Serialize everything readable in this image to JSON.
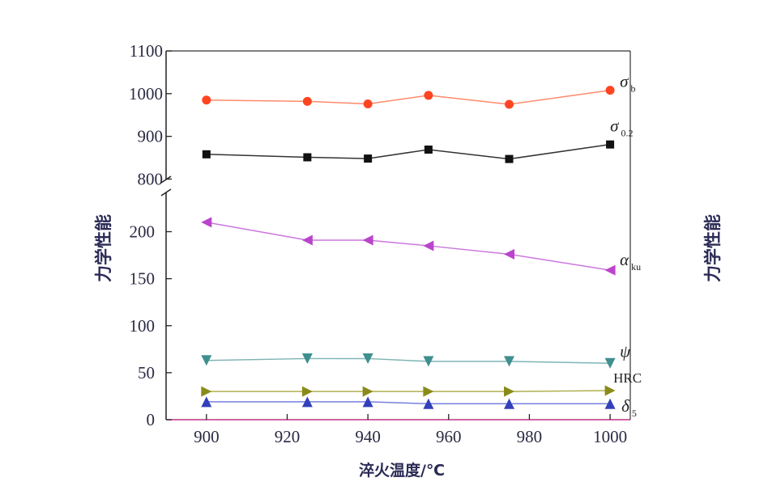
{
  "chart_data": {
    "type": "line",
    "xlabel": "淬火温度/℃",
    "ylabel": "力学性能",
    "ylabel_right": "力学性能",
    "x_ticks": [
      "900",
      "920",
      "940",
      "960",
      "980",
      "1000"
    ],
    "xlim": [
      890,
      1005
    ],
    "y_ticks_upper": [
      "800",
      "900",
      "1000",
      "1100"
    ],
    "y_ticks_lower": [
      "0",
      "50",
      "100",
      "150",
      "200"
    ],
    "ylim_upper": [
      780,
      1100
    ],
    "ylim_lower": [
      0,
      240
    ],
    "axis_break": "between 240 and 780",
    "x": [
      900,
      925,
      940,
      955,
      975,
      1000
    ],
    "series": [
      {
        "name": "σb",
        "label_main": "σ",
        "label_sub": "b",
        "values": [
          985,
          982,
          976,
          996,
          975,
          1008
        ],
        "color": "#ff4422",
        "line": "#ff8a6a",
        "marker": "circle"
      },
      {
        "name": "σ0.2",
        "label_main": "σ",
        "label_sub": "0.2",
        "values": [
          858,
          851,
          848,
          869,
          847,
          881
        ],
        "color": "#111111",
        "line": "#333333",
        "marker": "square"
      },
      {
        "name": "αku",
        "label_main": "α",
        "label_sub": "ku",
        "values": [
          210,
          191,
          191,
          185,
          176,
          159
        ],
        "color": "#bb44cc",
        "line": "#cc77dd",
        "marker": "triangle-left"
      },
      {
        "name": "ψ",
        "label_main": "ψ",
        "label_sub": "",
        "values": [
          63,
          65,
          65,
          62,
          62,
          60
        ],
        "color": "#3f8f8f",
        "line": "#7fb4b4",
        "marker": "triangle-down"
      },
      {
        "name": "HRC",
        "label_main": "HRC",
        "label_sub": "",
        "values": [
          30,
          30,
          30,
          30,
          30,
          31
        ],
        "color": "#8a8a1a",
        "line": "#b0b050",
        "marker": "triangle-right"
      },
      {
        "name": "δ5",
        "label_main": "δ",
        "label_sub": "5",
        "values": [
          19,
          19,
          19,
          17,
          17,
          17
        ],
        "color": "#3340bb",
        "line": "#7780dd",
        "marker": "triangle-up"
      }
    ]
  }
}
